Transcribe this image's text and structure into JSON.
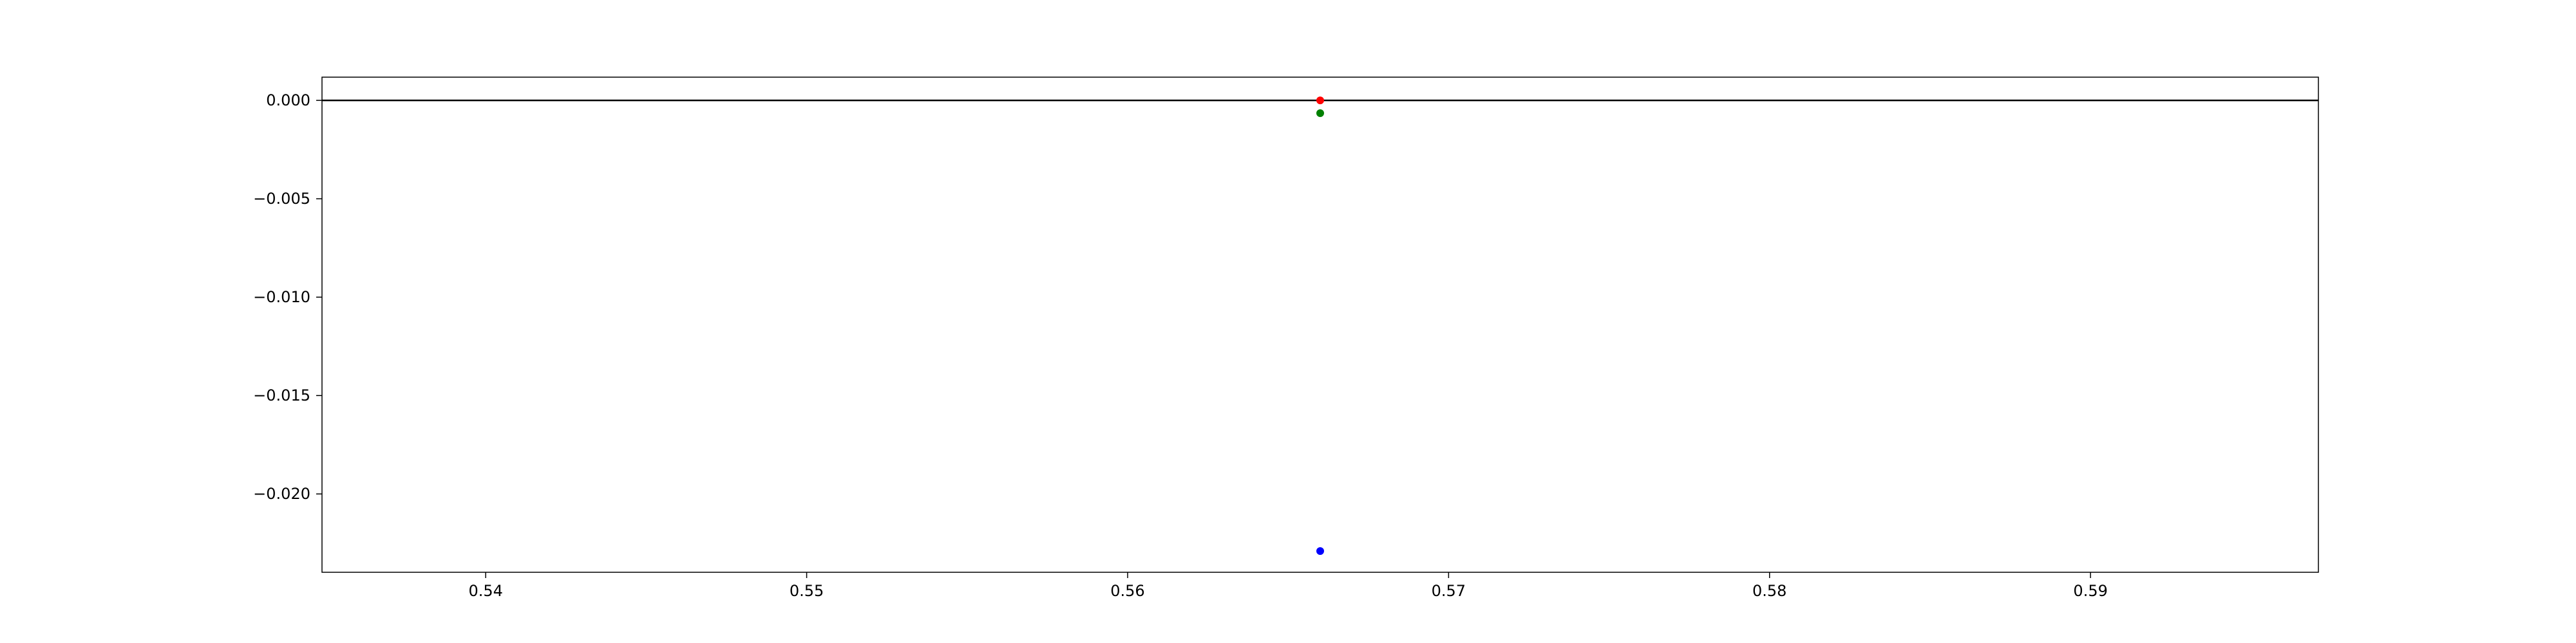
{
  "chart_data": {
    "type": "scatter",
    "title": "",
    "xlabel": "",
    "ylabel": "",
    "xlim": [
      0.5349,
      0.5971
    ],
    "ylim": [
      -0.02398,
      0.00118
    ],
    "x_ticks": [
      "0.54",
      "0.55",
      "0.56",
      "0.57",
      "0.58",
      "0.59"
    ],
    "x_tick_values": [
      0.54,
      0.55,
      0.56,
      0.57,
      0.58,
      0.59
    ],
    "y_ticks": [
      "0.000",
      "−0.005",
      "−0.010",
      "−0.015",
      "−0.020"
    ],
    "y_tick_values": [
      0.0,
      -0.005,
      -0.01,
      -0.015,
      -0.02
    ],
    "reference_line": {
      "y": 0.0,
      "color": "#000000"
    },
    "series": [
      {
        "color": "#ff0000",
        "x": [
          0.566
        ],
        "y": [
          0.0
        ]
      },
      {
        "color": "#008000",
        "x": [
          0.566
        ],
        "y": [
          -0.00065
        ]
      },
      {
        "color": "#0000ff",
        "x": [
          0.566
        ],
        "y": [
          -0.0229
        ]
      }
    ],
    "grid": false,
    "legend": "none"
  }
}
